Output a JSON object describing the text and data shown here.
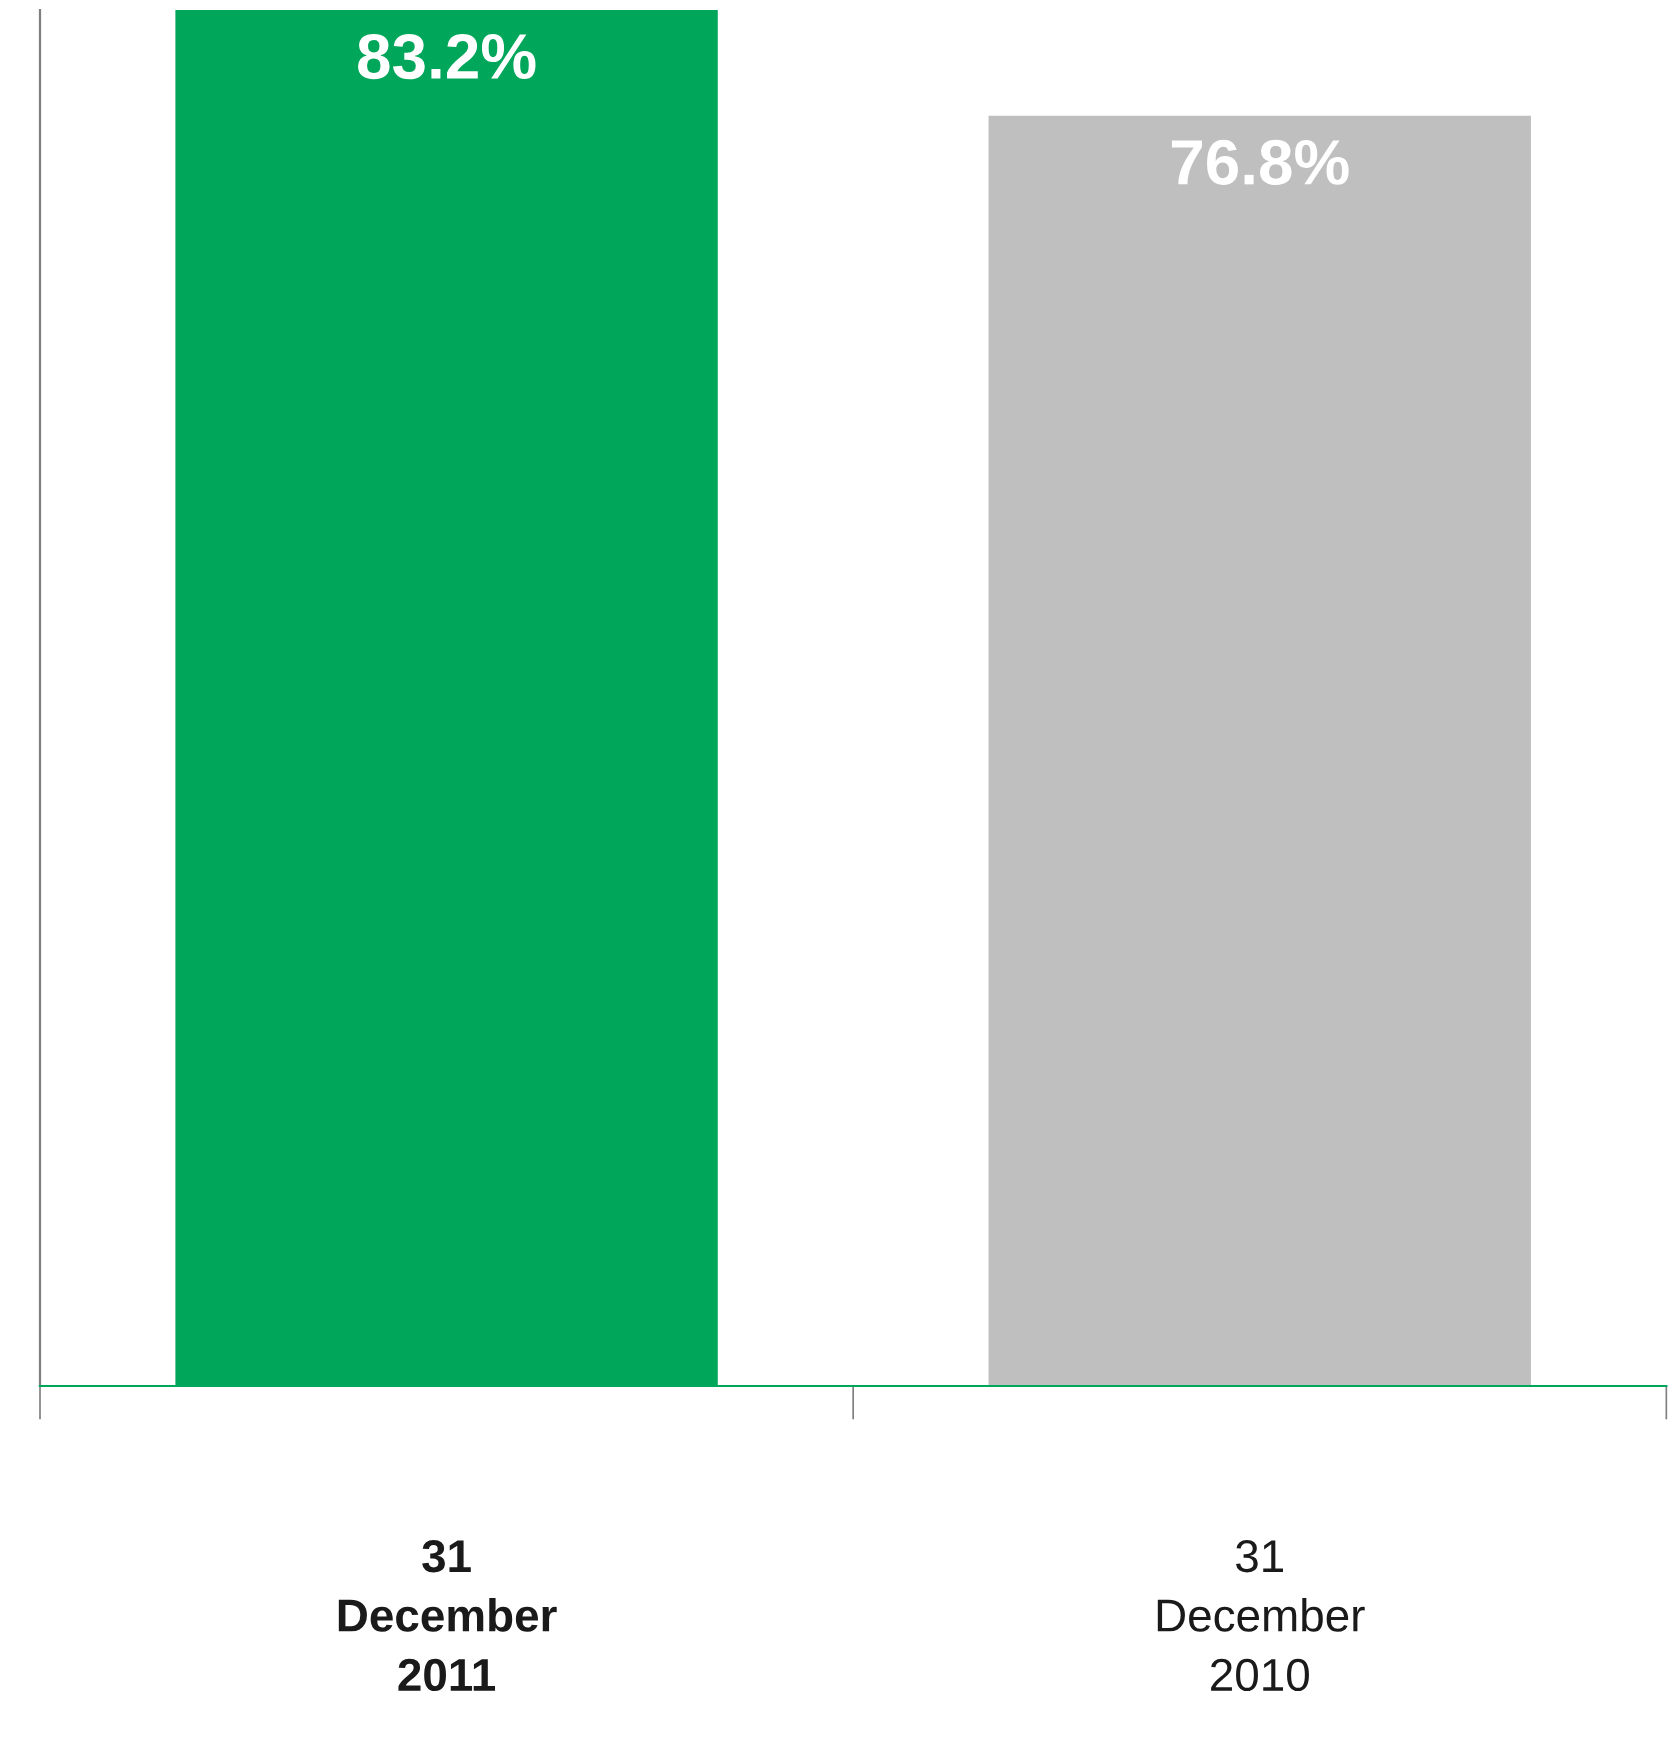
{
  "chart_data": {
    "type": "bar",
    "categories": [
      "31\nDecember\n2011",
      "31\nDecember\n2010"
    ],
    "values": [
      83.2,
      76.8
    ],
    "colors": [
      "#00a65a",
      "#bfbfbf"
    ],
    "value_labels": [
      "83.2%",
      "76.8%"
    ],
    "tick_labels": "x",
    "grid": false,
    "legend": false
  }
}
